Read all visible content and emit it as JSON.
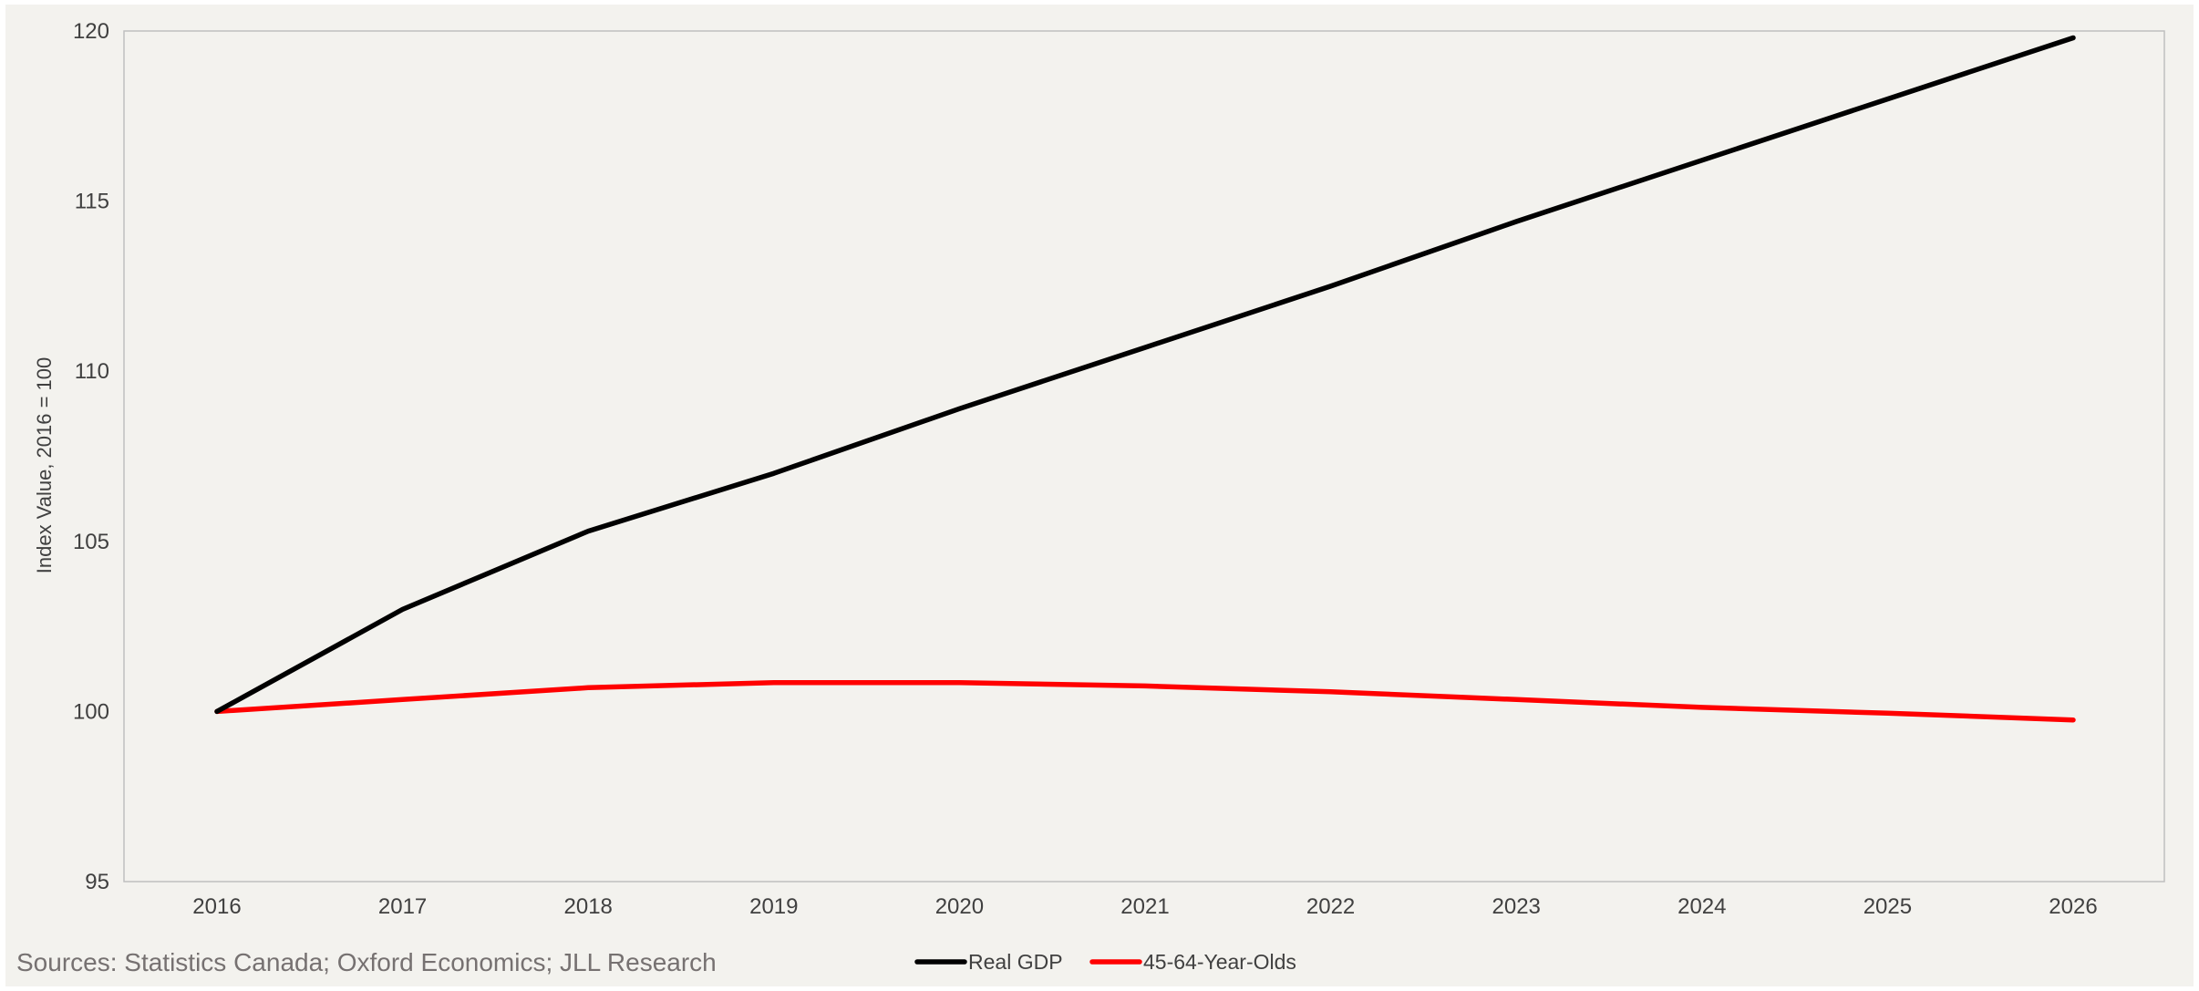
{
  "chart_data": {
    "type": "line",
    "title": "",
    "xlabel": "",
    "ylabel": "Index Value, 2016 = 100",
    "x": [
      "2016",
      "2017",
      "2018",
      "2019",
      "2020",
      "2021",
      "2022",
      "2023",
      "2024",
      "2025",
      "2026"
    ],
    "ylim": [
      95,
      120
    ],
    "yticks": [
      "95",
      "100",
      "105",
      "110",
      "115",
      "120"
    ],
    "grid": false,
    "legend_position": "bottom",
    "series": [
      {
        "name": "Real GDP",
        "color": "#000000",
        "values": [
          100.0,
          103.0,
          105.3,
          107.0,
          108.9,
          110.7,
          112.5,
          114.4,
          116.2,
          118.0,
          119.8
        ]
      },
      {
        "name": "45-64-Year-Olds",
        "color": "#ff0000",
        "values": [
          100.0,
          100.35,
          100.7,
          100.85,
          100.85,
          100.75,
          100.58,
          100.35,
          100.12,
          99.95,
          99.75
        ]
      }
    ]
  },
  "source_note": "Sources: Statistics Canada; Oxford Economics; JLL Research",
  "colors": {
    "background": "#f3f2ee",
    "axis": "#bfbfbf",
    "text": "#404040",
    "source_text": "#767171"
  }
}
